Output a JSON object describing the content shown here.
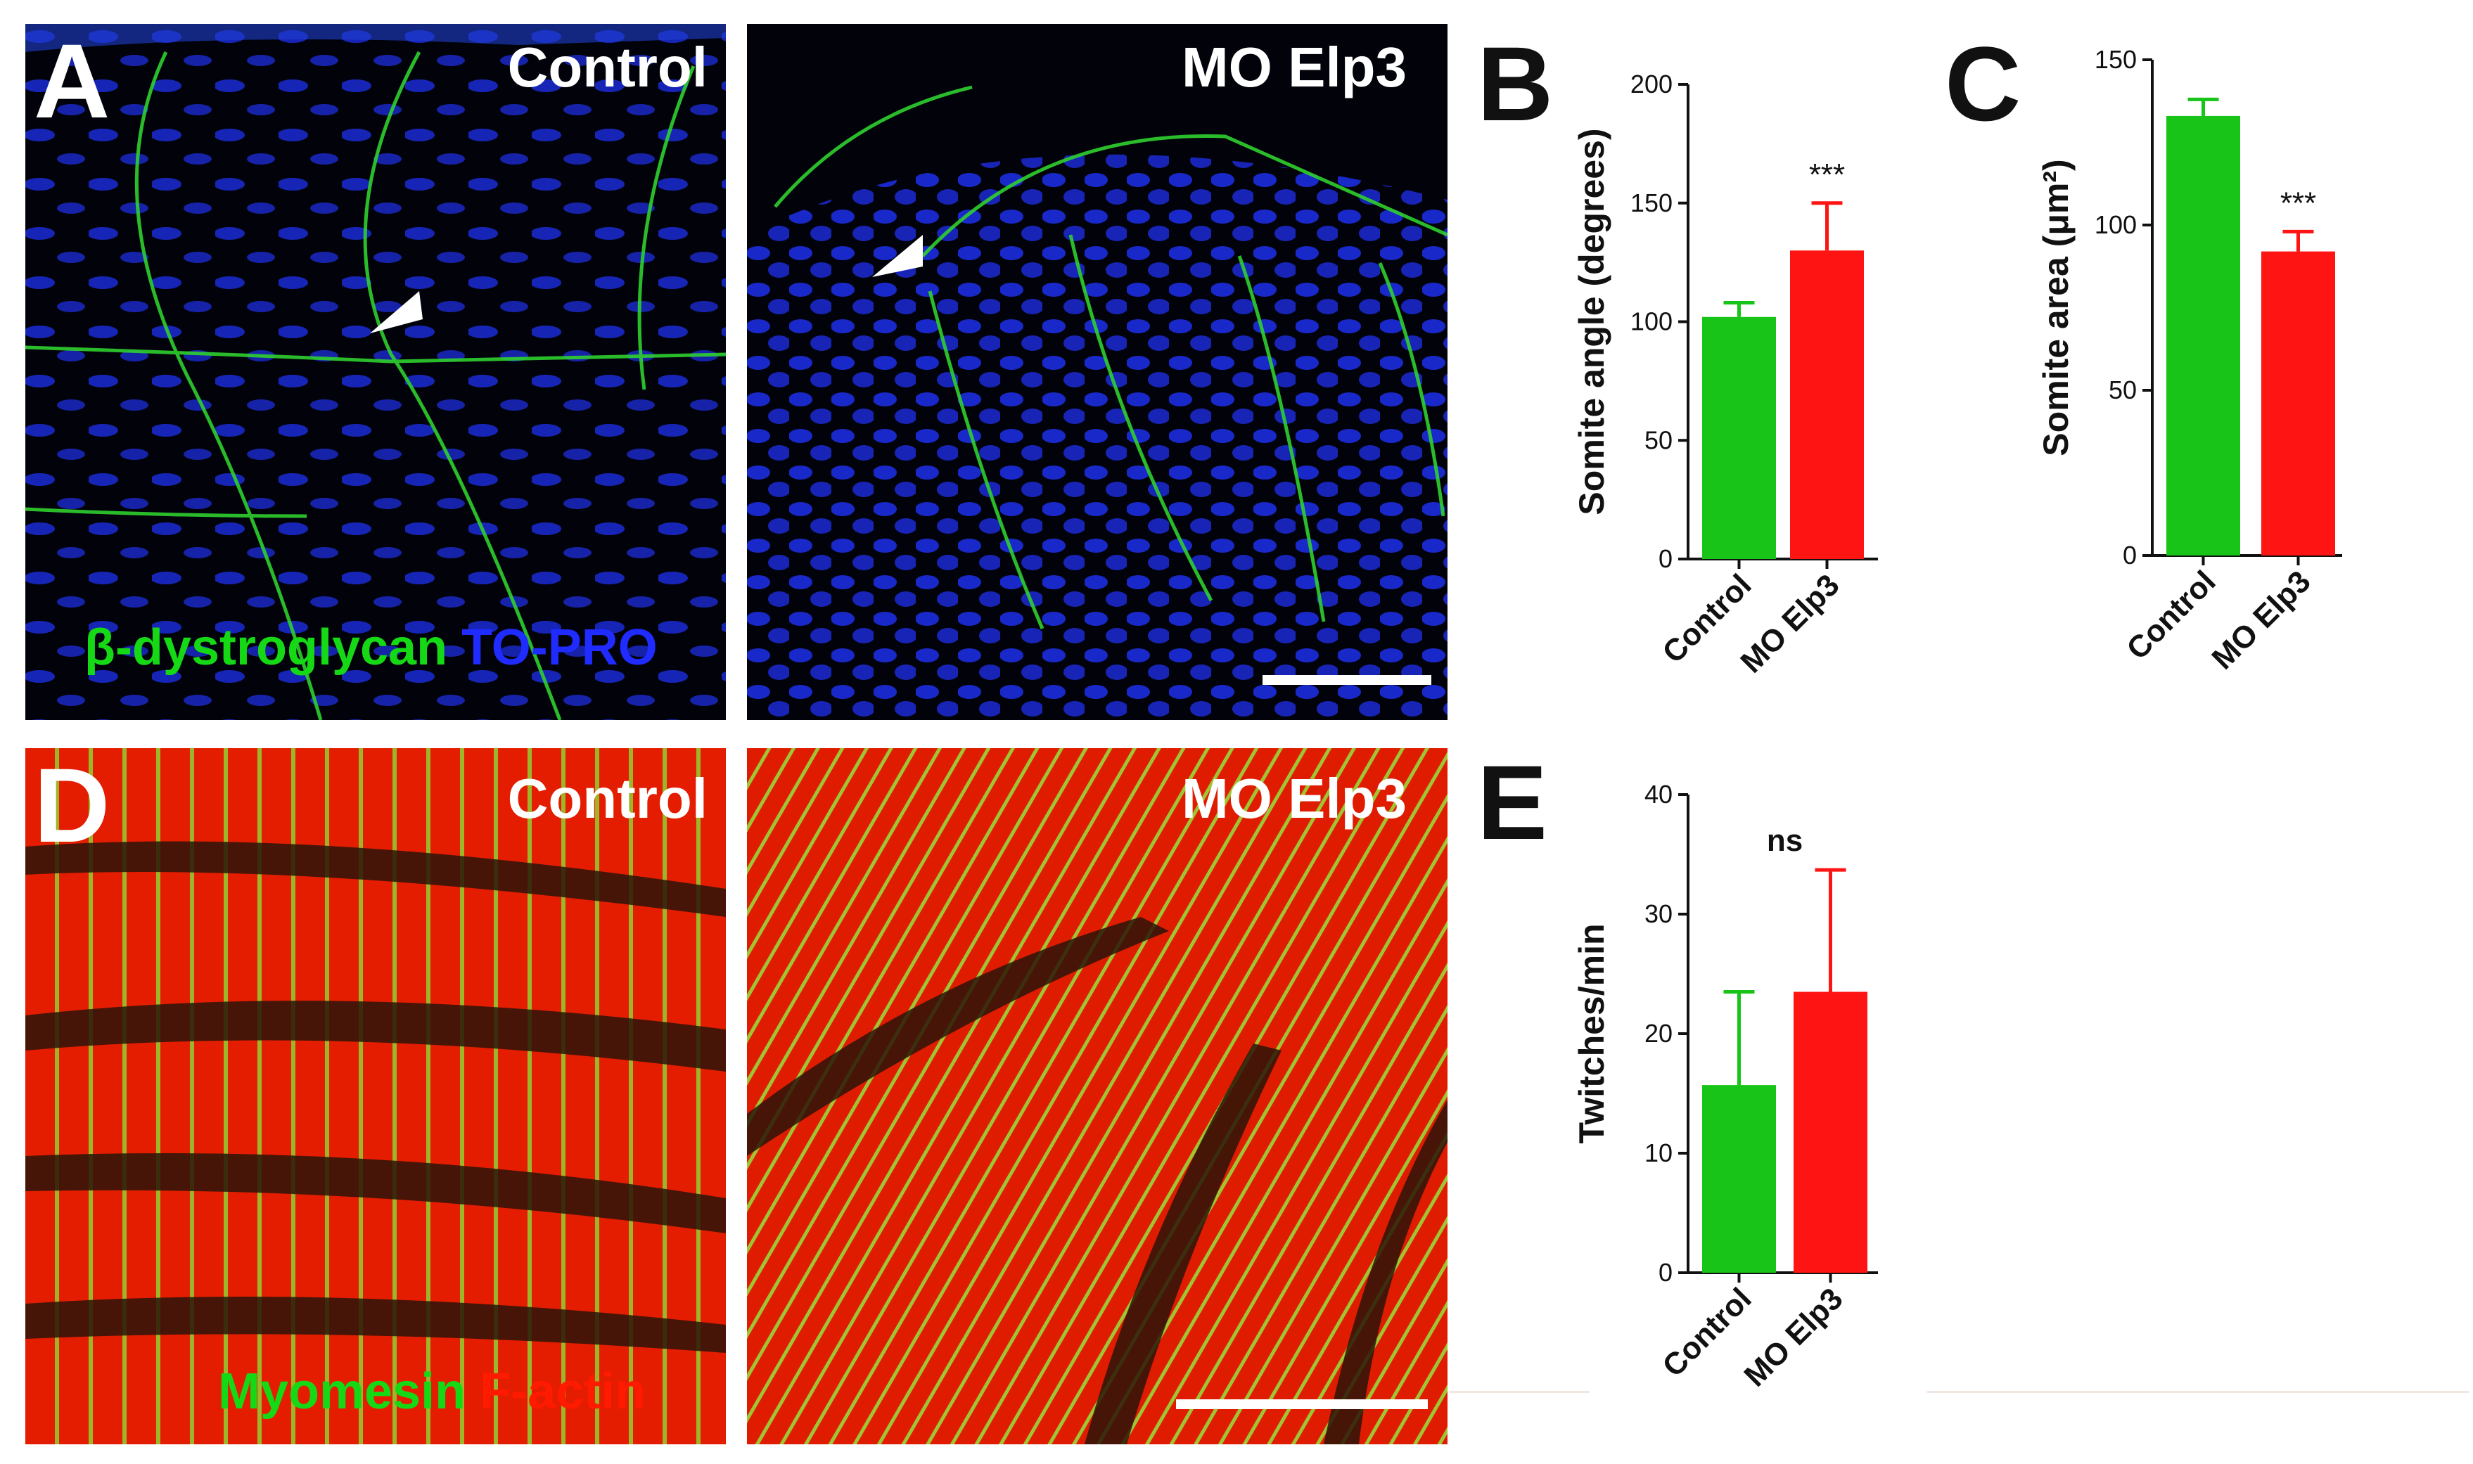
{
  "panels": {
    "A": {
      "letter": "A",
      "left_label": "Control",
      "right_label": "MO Elp3",
      "stain_green": "β-dystroglycan",
      "stain_blue": "TO-PRO"
    },
    "B": {
      "letter": "B"
    },
    "C": {
      "letter": "C"
    },
    "D": {
      "letter": "D",
      "left_label": "Control",
      "right_label": "MO Elp3",
      "stain_green": "Myomesin",
      "stain_red": "F-actin"
    },
    "E": {
      "letter": "E"
    }
  },
  "colors": {
    "control": "#18c418",
    "mo_elp3": "#ff1414",
    "stain_green": "#16d916",
    "stain_blue": "#1f2bff",
    "stain_red": "#ff1a00"
  },
  "chart_data": [
    {
      "panel": "B",
      "type": "bar",
      "categories": [
        "Control",
        "MO Elp3"
      ],
      "values": [
        102,
        130
      ],
      "errors": [
        6,
        20
      ],
      "ylabel": "Somite angle (degrees)",
      "ylim": [
        0,
        200
      ],
      "yticks": [
        0,
        50,
        100,
        150,
        200
      ],
      "annotations": [
        "",
        "***"
      ]
    },
    {
      "panel": "C",
      "type": "bar",
      "categories": [
        "Control",
        "MO Elp3"
      ],
      "values": [
        133,
        92
      ],
      "errors": [
        5,
        6
      ],
      "ylabel": "Somite area (μm²)",
      "ylim": [
        0,
        150
      ],
      "yticks": [
        0,
        50,
        100,
        150
      ],
      "annotations": [
        "",
        "***"
      ]
    },
    {
      "panel": "E",
      "type": "bar",
      "categories": [
        "Control",
        "MO Elp3"
      ],
      "values": [
        15.7,
        23.5
      ],
      "errors": [
        7.8,
        10.2
      ],
      "ylabel": "Twitches/min",
      "ylim": [
        0,
        40
      ],
      "yticks": [
        0,
        10,
        20,
        30,
        40
      ],
      "annotations": [
        "ns"
      ]
    }
  ]
}
